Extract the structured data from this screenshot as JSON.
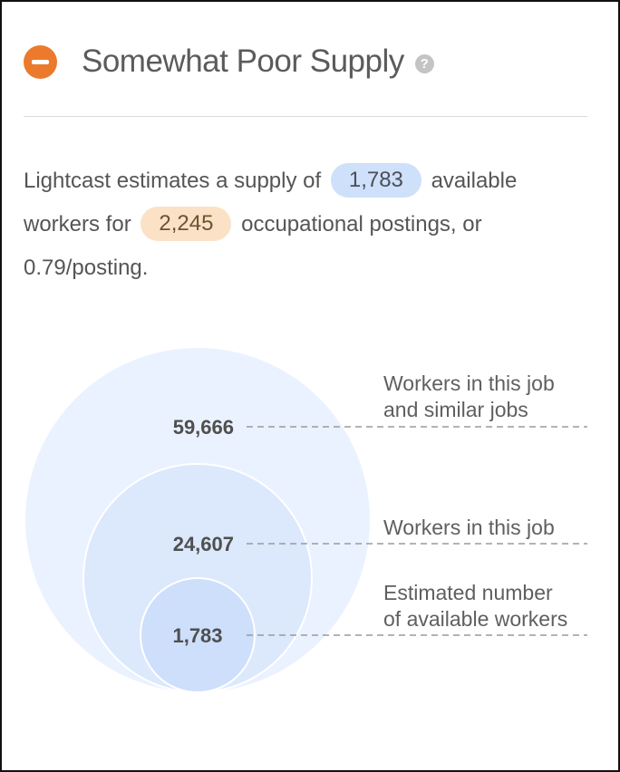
{
  "header": {
    "title": "Somewhat Poor Supply",
    "status_icon": "minus-circle-icon",
    "help_icon": "question-mark-icon",
    "help_glyph": "?",
    "accent_color": "#ec7a2c"
  },
  "summary": {
    "part1": "Lightcast estimates a supply of",
    "supply_value": "1,783",
    "part2": "available workers for",
    "postings_value": "2,245",
    "part3": "occupational postings, or 0.79/posting."
  },
  "chart_data": {
    "type": "nested-circles",
    "levels": [
      {
        "value": 59666,
        "display": "59,666",
        "label_lines": [
          "Workers in this job",
          "and similar jobs"
        ]
      },
      {
        "value": 24607,
        "display": "24,607",
        "label_lines": [
          "Workers in this job"
        ]
      },
      {
        "value": 1783,
        "display": "1,783",
        "label_lines": [
          "Estimated number",
          "of available workers"
        ]
      }
    ],
    "colors": [
      "#eaf2ff",
      "#dce8fc",
      "#cddffb"
    ]
  }
}
